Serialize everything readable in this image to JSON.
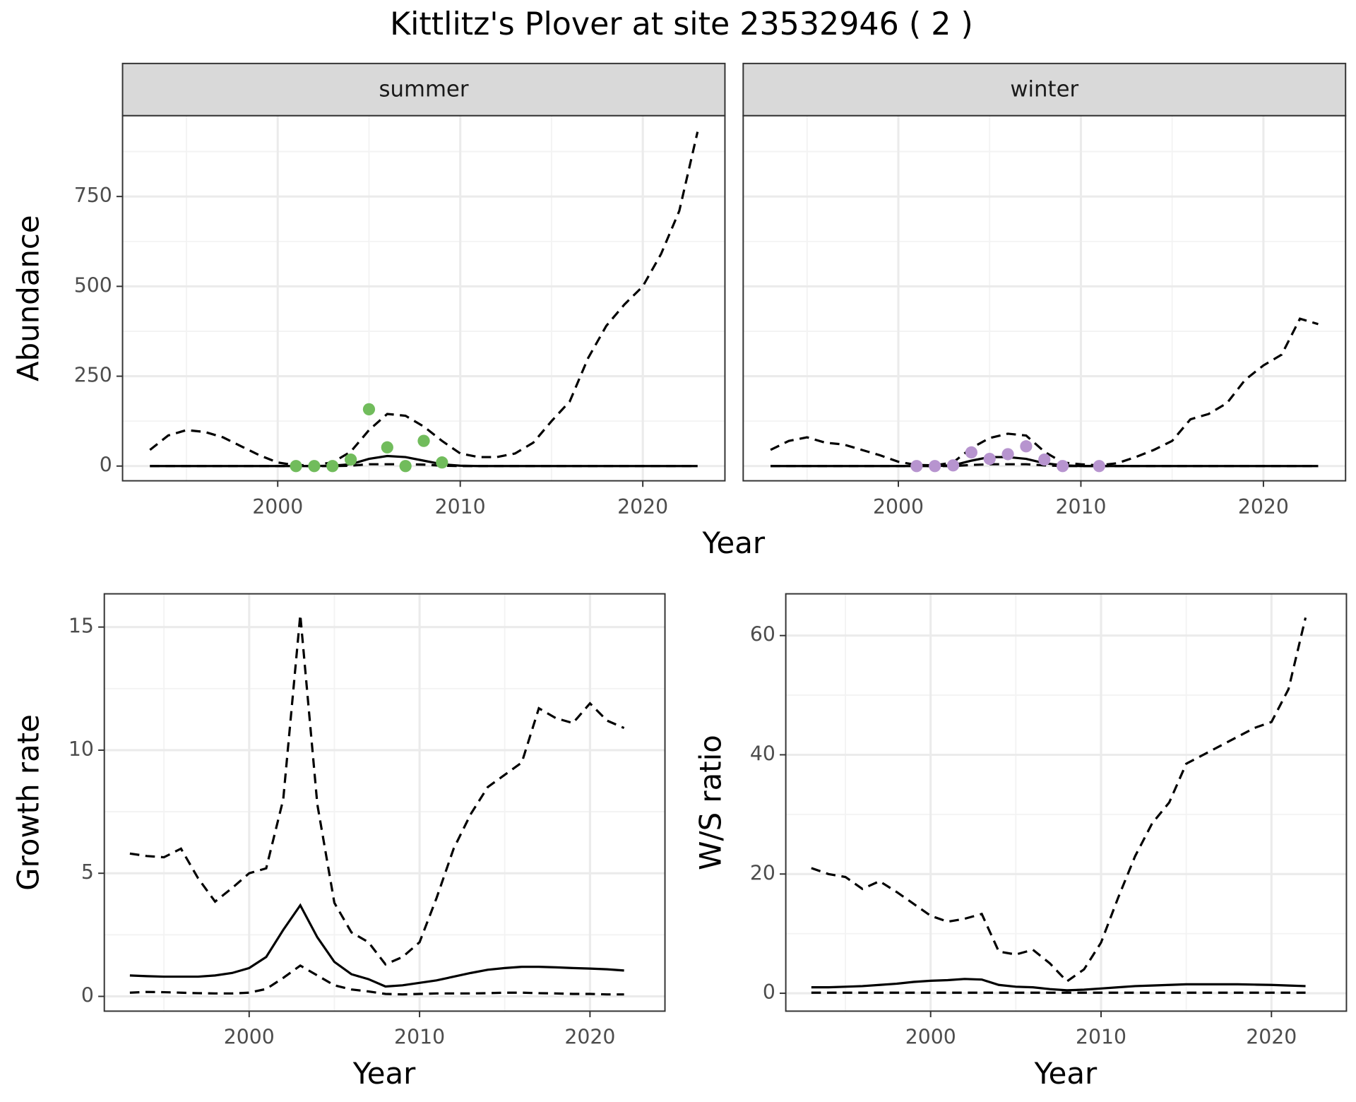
{
  "title": "Kittlitz's Plover at site 23532946 ( 2 )",
  "chart_data": [
    {
      "type": "line",
      "strip": "summer",
      "ylabel": "Abundance",
      "xlabel": "Year",
      "x": [
        1993,
        1994,
        1995,
        1996,
        1997,
        1998,
        1999,
        2000,
        2001,
        2002,
        2003,
        2004,
        2005,
        2006,
        2007,
        2008,
        2009,
        2010,
        2011,
        2012,
        2013,
        2014,
        2015,
        2016,
        2017,
        2018,
        2019,
        2020,
        2021,
        2022,
        2023
      ],
      "xlim": [
        1991.5,
        2024.5
      ],
      "xticks": [
        2000,
        2010,
        2020
      ],
      "ylim": [
        -41,
        975
      ],
      "yticks": [
        0,
        250,
        500,
        750
      ],
      "grid": true,
      "series": [
        {
          "type": "line",
          "linetype": "dashed",
          "color": "#000000",
          "values": [
            45,
            85,
            100,
            95,
            80,
            55,
            30,
            10,
            2,
            3,
            10,
            40,
            100,
            145,
            140,
            110,
            70,
            35,
            25,
            25,
            35,
            65,
            125,
            180,
            300,
            390,
            450,
            500,
            590,
            710,
            930
          ]
        },
        {
          "type": "line",
          "linetype": "solid",
          "color": "#000000",
          "values": [
            0,
            0,
            0,
            0,
            0,
            0,
            0,
            0,
            0,
            0,
            1,
            5,
            20,
            28,
            25,
            15,
            5,
            1,
            0,
            0,
            0,
            0,
            0,
            0,
            0,
            0,
            0,
            0,
            0,
            0,
            0
          ]
        },
        {
          "type": "line",
          "linetype": "dashed",
          "color": "#000000",
          "values": [
            0,
            0,
            0,
            0,
            0,
            0,
            0,
            0,
            0,
            0,
            0,
            1,
            5,
            5,
            5,
            4,
            1,
            0,
            0,
            0,
            0,
            0,
            0,
            0,
            0,
            0,
            0,
            0,
            0,
            0,
            0
          ]
        },
        {
          "type": "scatter",
          "color": "#71bc5c",
          "x": [
            2001,
            2002,
            2003,
            2004,
            2005,
            2006,
            2007,
            2008,
            2009
          ],
          "values": [
            0,
            0,
            0,
            18,
            158,
            52,
            0,
            70,
            10
          ]
        }
      ]
    },
    {
      "type": "line",
      "strip": "winter",
      "x": [
        1993,
        1994,
        1995,
        1996,
        1997,
        1998,
        1999,
        2000,
        2001,
        2002,
        2003,
        2004,
        2005,
        2006,
        2007,
        2008,
        2009,
        2010,
        2011,
        2012,
        2013,
        2014,
        2015,
        2016,
        2017,
        2018,
        2019,
        2020,
        2021,
        2022,
        2023
      ],
      "xlim": [
        1991.5,
        2024.5
      ],
      "xticks": [
        2000,
        2010,
        2020
      ],
      "ylim": [
        -41,
        975
      ],
      "yticks": [
        0,
        250,
        500,
        750
      ],
      "grid": true,
      "series": [
        {
          "type": "line",
          "linetype": "dashed",
          "color": "#000000",
          "values": [
            45,
            70,
            80,
            65,
            60,
            45,
            30,
            12,
            3,
            2,
            10,
            50,
            78,
            90,
            85,
            40,
            10,
            5,
            2,
            8,
            25,
            45,
            70,
            130,
            145,
            175,
            240,
            280,
            310,
            410,
            395
          ]
        },
        {
          "type": "line",
          "linetype": "solid",
          "color": "#000000",
          "values": [
            0,
            0,
            0,
            0,
            0,
            0,
            0,
            0,
            0,
            0,
            2,
            15,
            25,
            25,
            20,
            8,
            2,
            0,
            0,
            0,
            0,
            0,
            0,
            0,
            0,
            0,
            0,
            0,
            0,
            0,
            0
          ]
        },
        {
          "type": "line",
          "linetype": "dashed",
          "color": "#000000",
          "values": [
            0,
            0,
            0,
            0,
            0,
            0,
            0,
            0,
            0,
            0,
            0,
            3,
            5,
            5,
            5,
            2,
            0,
            0,
            0,
            0,
            0,
            0,
            0,
            0,
            0,
            0,
            0,
            0,
            0,
            0,
            0
          ]
        },
        {
          "type": "scatter",
          "color": "#b794cf",
          "x": [
            2001,
            2002,
            2003,
            2004,
            2005,
            2006,
            2007,
            2008,
            2009,
            2011
          ],
          "values": [
            0,
            0,
            2,
            38,
            20,
            33,
            55,
            18,
            0,
            0
          ]
        }
      ]
    },
    {
      "type": "line",
      "ylabel": "Growth rate",
      "xlabel": "Year",
      "x": [
        1993,
        1994,
        1995,
        1996,
        1997,
        1998,
        1999,
        2000,
        2001,
        2002,
        2003,
        2004,
        2005,
        2006,
        2007,
        2008,
        2009,
        2010,
        2011,
        2012,
        2013,
        2014,
        2015,
        2016,
        2017,
        2018,
        2019,
        2020,
        2021,
        2022
      ],
      "xlim": [
        1991.5,
        2024.4
      ],
      "xticks": [
        2000,
        2010,
        2020
      ],
      "ylim": [
        -0.6,
        16.35
      ],
      "yticks": [
        0,
        5,
        10,
        15
      ],
      "grid": true,
      "series": [
        {
          "type": "line",
          "linetype": "dashed",
          "color": "#000000",
          "values": [
            5.8,
            5.7,
            5.65,
            6.0,
            4.8,
            3.85,
            4.4,
            5.0,
            5.2,
            8.0,
            15.5,
            7.8,
            3.8,
            2.6,
            2.2,
            1.3,
            1.6,
            2.2,
            4.0,
            6.0,
            7.4,
            8.5,
            9.0,
            9.5,
            11.7,
            11.3,
            11.1,
            11.9,
            11.2,
            10.9
          ]
        },
        {
          "type": "line",
          "linetype": "solid",
          "color": "#000000",
          "values": [
            0.85,
            0.82,
            0.8,
            0.8,
            0.8,
            0.85,
            0.95,
            1.15,
            1.6,
            2.7,
            3.7,
            2.4,
            1.4,
            0.9,
            0.7,
            0.4,
            0.45,
            0.55,
            0.65,
            0.8,
            0.95,
            1.08,
            1.15,
            1.2,
            1.2,
            1.18,
            1.15,
            1.13,
            1.1,
            1.05
          ]
        },
        {
          "type": "line",
          "linetype": "dashed",
          "color": "#000000",
          "values": [
            0.15,
            0.18,
            0.17,
            0.15,
            0.13,
            0.12,
            0.12,
            0.15,
            0.3,
            0.75,
            1.25,
            0.85,
            0.45,
            0.28,
            0.2,
            0.1,
            0.08,
            0.1,
            0.12,
            0.12,
            0.12,
            0.13,
            0.15,
            0.15,
            0.13,
            0.12,
            0.1,
            0.1,
            0.08,
            0.08
          ]
        }
      ]
    },
    {
      "type": "line",
      "ylabel": "W/S ratio",
      "xlabel": "Year",
      "x": [
        1993,
        1994,
        1995,
        1996,
        1997,
        1998,
        1999,
        2000,
        2001,
        2002,
        2003,
        2004,
        2005,
        2006,
        2007,
        2008,
        2009,
        2010,
        2011,
        2012,
        2013,
        2014,
        2015,
        2016,
        2017,
        2018,
        2019,
        2020,
        2021,
        2022
      ],
      "xlim": [
        1991.5,
        2024.4
      ],
      "xticks": [
        2000,
        2010,
        2020
      ],
      "ylim": [
        -3,
        67
      ],
      "yticks": [
        0,
        20,
        40,
        60
      ],
      "grid": true,
      "series": [
        {
          "type": "line",
          "linetype": "dashed",
          "color": "#000000",
          "values": [
            21,
            20,
            19.5,
            17.5,
            18.8,
            17,
            15,
            13,
            12,
            12.5,
            13.3,
            7,
            6.5,
            7.3,
            5,
            2,
            4,
            8.5,
            16,
            23,
            28.5,
            32,
            38.5,
            40,
            41.5,
            43,
            44.5,
            45.5,
            51,
            63
          ]
        },
        {
          "type": "line",
          "linetype": "solid",
          "color": "#000000",
          "values": [
            1,
            1,
            1.1,
            1.2,
            1.4,
            1.6,
            1.9,
            2.1,
            2.2,
            2.4,
            2.3,
            1.4,
            1.1,
            1.0,
            0.7,
            0.5,
            0.6,
            0.8,
            1.0,
            1.2,
            1.3,
            1.4,
            1.5,
            1.5,
            1.5,
            1.5,
            1.45,
            1.4,
            1.3,
            1.2
          ]
        },
        {
          "type": "line",
          "linetype": "dashed",
          "color": "#000000",
          "values": [
            0.1,
            0.1,
            0.1,
            0.1,
            0.1,
            0.1,
            0.1,
            0.1,
            0.1,
            0.1,
            0.1,
            0.1,
            0.1,
            0.1,
            0.1,
            0.1,
            0.1,
            0.1,
            0.1,
            0.1,
            0.1,
            0.1,
            0.1,
            0.1,
            0.1,
            0.1,
            0.1,
            0.1,
            0.1,
            0.1
          ]
        }
      ]
    }
  ]
}
